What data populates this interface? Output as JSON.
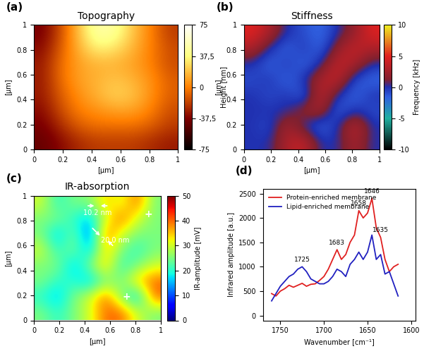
{
  "chart_data": [
    {
      "type": "heatmap",
      "panel": "(a)",
      "title": "Topography",
      "x_label": "[µm]",
      "y_label": "[µm]",
      "xlim": [
        0,
        1
      ],
      "ylim": [
        0,
        1
      ],
      "xticks": [
        0,
        0.2,
        0.4,
        0.6,
        0.8,
        1
      ],
      "yticks": [
        0,
        0.2,
        0.4,
        0.6,
        0.8,
        1
      ],
      "cells": [
        [
          -45,
          -35,
          -25,
          -20,
          -20,
          -20,
          -25,
          -30
        ],
        [
          -40,
          -25,
          -10,
          -5,
          -5,
          -5,
          -10,
          -20
        ],
        [
          -35,
          -15,
          0,
          5,
          10,
          10,
          0,
          -15
        ],
        [
          -30,
          -10,
          5,
          15,
          25,
          20,
          5,
          -10
        ],
        [
          -30,
          -5,
          10,
          15,
          20,
          15,
          5,
          -10
        ],
        [
          -30,
          -5,
          10,
          15,
          15,
          10,
          0,
          -15
        ],
        [
          -35,
          -10,
          15,
          35,
          30,
          15,
          0,
          -15
        ],
        [
          -40,
          -15,
          20,
          50,
          45,
          20,
          0,
          -20
        ]
      ],
      "colorbar": {
        "label": "Height [nm]",
        "range": [
          -75,
          75
        ],
        "ticks": [
          75,
          {
            "value": 37.5,
            "label": "37,5"
          },
          0,
          {
            "value": -37.5,
            "label": "-37,5"
          },
          -75
        ]
      }
    },
    {
      "type": "heatmap",
      "panel": "(b)",
      "title": "Stiffness",
      "x_label": "[µm]",
      "y_label": "[µm]",
      "xlim": [
        0,
        1
      ],
      "ylim": [
        0,
        1
      ],
      "xticks": [
        0,
        0.2,
        0.4,
        0.6,
        0.8,
        1
      ],
      "yticks": [
        0,
        0.2,
        0.4,
        0.6,
        0.8,
        1
      ],
      "cells": [
        [
          0,
          0,
          3,
          4,
          0,
          0,
          3,
          0
        ],
        [
          0,
          -1,
          3,
          0,
          -2,
          0,
          4,
          0
        ],
        [
          0,
          0,
          0,
          2,
          3,
          -2,
          0,
          -1
        ],
        [
          0,
          -1,
          0,
          -2,
          4,
          0,
          -2,
          0
        ],
        [
          -1,
          0,
          -2,
          0,
          3,
          4,
          -1,
          -2
        ],
        [
          0,
          -2,
          0,
          -2,
          0,
          4,
          3,
          0
        ],
        [
          3,
          0,
          -2,
          0,
          -2,
          2,
          4,
          3
        ],
        [
          5,
          3,
          0,
          -1,
          -2,
          0,
          2,
          5
        ]
      ],
      "colorbar": {
        "label": "Frequency [kHz]",
        "range": [
          -10,
          10
        ],
        "ticks": [
          10,
          5,
          0,
          -5,
          -10
        ]
      }
    },
    {
      "type": "heatmap",
      "panel": "(c)",
      "title": "IR-absorption",
      "x_label": "[µm]",
      "y_label": "[µm]",
      "xlim": [
        0,
        1
      ],
      "ylim": [
        0,
        1
      ],
      "xticks": [
        0,
        0.2,
        0.4,
        0.6,
        0.8,
        1
      ],
      "yticks": [
        0,
        0.2,
        0.4,
        0.6,
        0.8,
        1
      ],
      "cells": [
        [
          25,
          20,
          25,
          30,
          40,
          40,
          30,
          25
        ],
        [
          20,
          15,
          25,
          30,
          40,
          25,
          15,
          40
        ],
        [
          25,
          20,
          20,
          15,
          25,
          25,
          35,
          40
        ],
        [
          25,
          25,
          15,
          25,
          35,
          20,
          25,
          30
        ],
        [
          30,
          20,
          25,
          15,
          35,
          25,
          20,
          25
        ],
        [
          25,
          15,
          25,
          10,
          40,
          30,
          25,
          25
        ],
        [
          25,
          25,
          20,
          15,
          30,
          40,
          30,
          25
        ],
        [
          30,
          20,
          25,
          25,
          35,
          30,
          40,
          25
        ]
      ],
      "colorbar": {
        "label": "IR-amplitude [mV]",
        "range": [
          0,
          50
        ],
        "ticks": [
          0,
          10,
          20,
          30,
          40,
          50
        ]
      },
      "annotations": [
        {
          "text": "10.2 nm",
          "x": 0.5,
          "y": 0.86
        },
        {
          "text": "20.0 nm",
          "x": 0.64,
          "y": 0.64
        },
        {
          "text": "+",
          "x": 0.9,
          "y": 0.85
        },
        {
          "text": "+",
          "x": 0.73,
          "y": 0.19
        }
      ]
    },
    {
      "type": "line",
      "panel": "(d)",
      "x_label": "Wavenumber [cm⁻¹]",
      "y_label": "Infrared amplitude [a.u.]",
      "xlim": [
        1770,
        1595
      ],
      "ylim": [
        -100,
        2600
      ],
      "xticks": [
        1750,
        1700,
        1650,
        1600
      ],
      "yticks": [
        0,
        500,
        1000,
        1500,
        2000,
        2500
      ],
      "legend": "upper left",
      "x": [
        1760,
        1755,
        1750,
        1745,
        1740,
        1735,
        1730,
        1725,
        1720,
        1715,
        1710,
        1705,
        1700,
        1695,
        1690,
        1685,
        1680,
        1675,
        1670,
        1665,
        1660,
        1655,
        1650,
        1645,
        1640,
        1635,
        1630,
        1625,
        1620,
        1615
      ],
      "series": [
        {
          "name": "Protein-enriched membrane",
          "color": "#e02020",
          "values": [
            450,
            400,
            500,
            550,
            620,
            580,
            620,
            660,
            600,
            640,
            650,
            720,
            800,
            950,
            1150,
            1350,
            1150,
            1250,
            1500,
            1650,
            2150,
            2000,
            2100,
            2400,
            1800,
            1600,
            1150,
            900,
            1000,
            1050
          ]
        },
        {
          "name": "Lipid-enriched membrane",
          "color": "#2020c0",
          "values": [
            300,
            450,
            600,
            700,
            800,
            850,
            950,
            1000,
            900,
            750,
            700,
            650,
            650,
            700,
            800,
            950,
            900,
            800,
            1050,
            1150,
            1300,
            1150,
            1300,
            1650,
            1150,
            1250,
            850,
            900,
            650,
            400
          ]
        }
      ],
      "peaks": [
        1725,
        1683,
        1658,
        1646,
        1635
      ]
    }
  ]
}
